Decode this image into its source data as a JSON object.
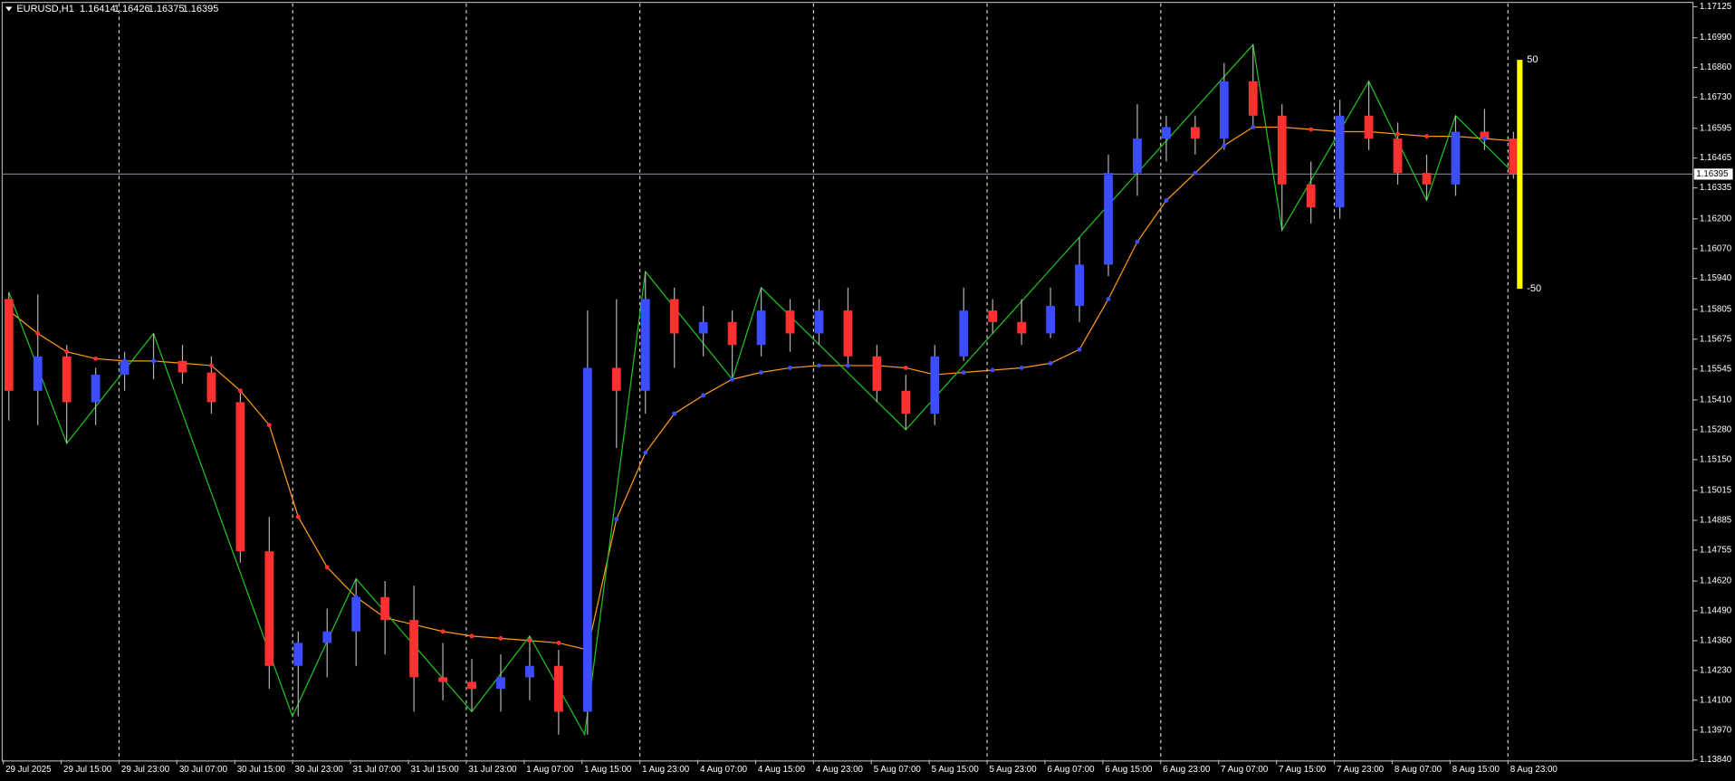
{
  "chart_data": {
    "type": "candlestick",
    "symbol": "EURUSD,H1",
    "last_ohlc": [
      1.16414,
      1.16426,
      1.16375,
      1.16395
    ],
    "current_price": {
      "value": 1.16395,
      "label": "1.16395"
    },
    "up_color": "#3b4dff",
    "down_color": "#ff3030",
    "wick_color": "#b0b0b0",
    "open": [
      1.1585,
      1.1545,
      1.156,
      1.154,
      1.1552,
      1.1558,
      1.1558,
      1.1553,
      1.154,
      1.1475,
      1.1425,
      1.1435,
      1.144,
      1.1455,
      1.1445,
      1.142,
      1.1418,
      1.1415,
      1.142,
      1.1425,
      1.1405,
      1.1555,
      1.1545,
      1.1585,
      1.157,
      1.1575,
      1.1565,
      1.158,
      1.157,
      1.158,
      1.156,
      1.1545,
      1.1535,
      1.156,
      1.158,
      1.1575,
      1.157,
      1.1582,
      1.16,
      1.164,
      1.1655,
      1.166,
      1.1655,
      1.168,
      1.1665,
      1.1635,
      1.1625,
      1.1665,
      1.1655,
      1.164,
      1.1635,
      1.1658,
      1.1655
    ],
    "high": [
      1.1588,
      1.1587,
      1.1565,
      1.1555,
      1.1562,
      1.157,
      1.1565,
      1.156,
      1.1545,
      1.149,
      1.144,
      1.145,
      1.1463,
      1.1462,
      1.146,
      1.1435,
      1.1428,
      1.143,
      1.1438,
      1.1432,
      1.158,
      1.1585,
      1.1597,
      1.159,
      1.1582,
      1.158,
      1.159,
      1.1585,
      1.1585,
      1.159,
      1.1565,
      1.1552,
      1.1565,
      1.159,
      1.1585,
      1.1585,
      1.159,
      1.1612,
      1.1648,
      1.167,
      1.1665,
      1.1665,
      1.1688,
      1.1696,
      1.167,
      1.1645,
      1.1672,
      1.168,
      1.1662,
      1.1648,
      1.1665,
      1.1668,
      1.1658
    ],
    "low": [
      1.1532,
      1.153,
      1.1522,
      1.153,
      1.1545,
      1.155,
      1.1548,
      1.1535,
      1.147,
      1.1415,
      1.1403,
      1.142,
      1.1425,
      1.143,
      1.1405,
      1.141,
      1.1405,
      1.1405,
      1.141,
      1.1395,
      1.1395,
      1.152,
      1.1535,
      1.1555,
      1.156,
      1.155,
      1.156,
      1.1562,
      1.1565,
      1.1555,
      1.154,
      1.1528,
      1.153,
      1.1558,
      1.157,
      1.1565,
      1.1568,
      1.1575,
      1.1595,
      1.163,
      1.1645,
      1.1648,
      1.165,
      1.166,
      1.1615,
      1.1618,
      1.162,
      1.165,
      1.1635,
      1.1628,
      1.163,
      1.165,
      1.16375
    ],
    "close": [
      1.1545,
      1.156,
      1.154,
      1.1552,
      1.1558,
      1.1558,
      1.1553,
      1.154,
      1.1475,
      1.1425,
      1.1435,
      1.144,
      1.1455,
      1.1445,
      1.142,
      1.1418,
      1.1415,
      1.142,
      1.1425,
      1.1405,
      1.1555,
      1.1545,
      1.1585,
      1.157,
      1.1575,
      1.1565,
      1.158,
      1.157,
      1.158,
      1.156,
      1.1545,
      1.1535,
      1.156,
      1.158,
      1.1575,
      1.157,
      1.1582,
      1.16,
      1.164,
      1.1655,
      1.166,
      1.1655,
      1.168,
      1.1665,
      1.1635,
      1.1625,
      1.1665,
      1.1655,
      1.164,
      1.1635,
      1.1658,
      1.1655,
      1.16395
    ],
    "ma": {
      "color": "#ff9a1a",
      "values": [
        1.158,
        1.157,
        1.1562,
        1.1559,
        1.1558,
        1.1558,
        1.1557,
        1.1556,
        1.1545,
        1.153,
        1.149,
        1.1468,
        1.1455,
        1.1446,
        1.1443,
        1.144,
        1.1438,
        1.1437,
        1.1436,
        1.1435,
        1.1432,
        1.1489,
        1.1518,
        1.1535,
        1.1543,
        1.155,
        1.1553,
        1.1555,
        1.1556,
        1.1556,
        1.1556,
        1.1555,
        1.1552,
        1.1553,
        1.1554,
        1.1555,
        1.1557,
        1.1563,
        1.1585,
        1.161,
        1.1628,
        1.164,
        1.1652,
        1.166,
        1.166,
        1.1659,
        1.1658,
        1.1658,
        1.1657,
        1.1656,
        1.1656,
        1.1655,
        1.1654
      ]
    },
    "zigzag": {
      "color": "#1fc41f",
      "x": [
        0,
        2,
        5,
        9.8,
        12,
        16,
        18,
        19.9,
        22,
        25,
        26,
        31,
        43,
        44,
        47,
        49,
        50,
        52
      ],
      "values": [
        1.1588,
        1.1522,
        1.157,
        1.1403,
        1.1463,
        1.1405,
        1.1438,
        1.1395,
        1.1597,
        1.155,
        1.159,
        1.1528,
        1.1696,
        1.1615,
        1.168,
        1.1628,
        1.1665,
        1.164
      ]
    },
    "oscillator": {
      "color": "#ffff00",
      "labels": [
        50,
        -50
      ]
    },
    "x_labels": [
      "29 Jul 2025",
      "29 Jul 15:00",
      "29 Jul 23:00",
      "30 Jul 07:00",
      "30 Jul 15:00",
      "30 Jul 23:00",
      "31 Jul 07:00",
      "31 Jul 15:00",
      "31 Jul 23:00",
      "1 Aug 07:00",
      "1 Aug 15:00",
      "1 Aug 23:00",
      "4 Aug 07:00",
      "4 Aug 15:00",
      "4 Aug 23:00",
      "5 Aug 07:00",
      "5 Aug 15:00",
      "5 Aug 23:00",
      "6 Aug 07:00",
      "6 Aug 15:00",
      "6 Aug 23:00",
      "7 Aug 07:00",
      "7 Aug 15:00",
      "7 Aug 23:00",
      "8 Aug 07:00",
      "8 Aug 15:00",
      "8 Aug 23:00"
    ],
    "ylim": [
      1.1384,
      1.17125
    ],
    "yticks": [
      1.17125,
      {
        "value": 1.1699,
        "label": "1.16990"
      },
      {
        "value": 1.1686,
        "label": "1.16860"
      },
      {
        "value": 1.1673,
        "label": "1.16730"
      },
      1.16595,
      1.16465,
      1.16335,
      {
        "value": 1.162,
        "label": "1.16200"
      },
      {
        "value": 1.1607,
        "label": "1.16070"
      },
      {
        "value": 1.1594,
        "label": "1.15940"
      },
      1.15805,
      1.15675,
      1.15545,
      {
        "value": 1.1541,
        "label": "1.15410"
      },
      {
        "value": 1.1528,
        "label": "1.15280"
      },
      {
        "value": 1.1515,
        "label": "1.15150"
      },
      1.15015,
      1.14885,
      1.14755,
      {
        "value": 1.1462,
        "label": "1.14620"
      },
      {
        "value": 1.1449,
        "label": "1.14490"
      },
      {
        "value": 1.1436,
        "label": "1.14360"
      },
      {
        "value": 1.1423,
        "label": "1.14230"
      },
      {
        "value": 1.141,
        "label": "1.14100"
      },
      {
        "value": 1.1397,
        "label": "1.13970"
      },
      {
        "value": 1.1384,
        "label": "1.13840"
      }
    ]
  }
}
